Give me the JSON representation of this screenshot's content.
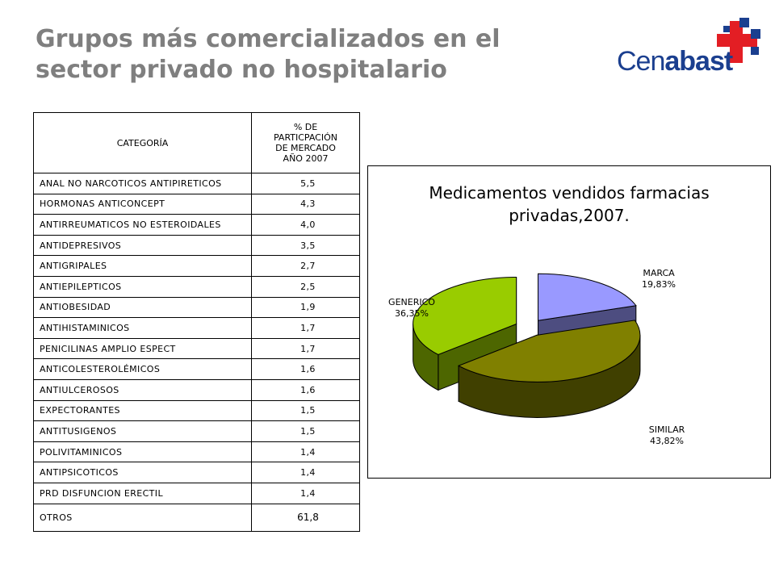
{
  "slide": {
    "title_line1": "Grupos más comercializados en el",
    "title_line2": "sector privado no hospitalario"
  },
  "logo": {
    "text_part1": "Cen",
    "text_part2": "abast",
    "colors": {
      "blue": "#1b3f8f",
      "red": "#e31e24",
      "navy": "#1b3f8f"
    }
  },
  "table": {
    "headers": [
      "CATEGORÍA",
      "% DE PARTICPACIÓN DE MERCADO AÑO 2007"
    ],
    "rows": [
      {
        "category": "ANAL NO NARCOTICOS ANTIPIRETICOS",
        "value": "5,5"
      },
      {
        "category": "HORMONAS ANTICONCEPT",
        "value": "4,3"
      },
      {
        "category": "ANTIRREUMATICOS NO ESTEROIDALES",
        "value": "4,0"
      },
      {
        "category": "ANTIDEPRESIVOS",
        "value": "3,5"
      },
      {
        "category": "ANTIGRIPALES",
        "value": "2,7"
      },
      {
        "category": "ANTIEPILEPTICOS",
        "value": "2,5"
      },
      {
        "category": "ANTIOBESIDAD",
        "value": "1,9"
      },
      {
        "category": "ANTIHISTAMINICOS",
        "value": "1,7"
      },
      {
        "category": "PENICILINAS AMPLIO ESPECT",
        "value": "1,7"
      },
      {
        "category": "ANTICOLESTEROLÉMICOS",
        "value": "1,6"
      },
      {
        "category": "ANTIULCEROSOS",
        "value": "1,6"
      },
      {
        "category": "EXPECTORANTES",
        "value": "1,5"
      },
      {
        "category": "ANTITUSIGENOS",
        "value": "1,5"
      },
      {
        "category": "POLIVITAMINICOS",
        "value": "1,4"
      },
      {
        "category": "ANTIPSICOTICOS",
        "value": "1,4"
      },
      {
        "category": "PRD DISFUNCION ERECTIL",
        "value": "1,4"
      },
      {
        "category": "OTROS",
        "value": "61,8"
      }
    ]
  },
  "chart_data": {
    "type": "pie",
    "style": "3d-exploded",
    "title_line1": "Medicamentos vendidos farmacias",
    "title_line2": "privadas,2007.",
    "slices": [
      {
        "label": "MARCA",
        "value": 19.83,
        "value_label": "19,83%",
        "color": "#9999ff",
        "side_color": "#4d4d80"
      },
      {
        "label": "SIMILAR",
        "value": 43.82,
        "value_label": "43,82%",
        "color": "#808000",
        "side_color": "#404000"
      },
      {
        "label": "GENERICO",
        "value": 36.35,
        "value_label": "36,35%",
        "color": "#99cc00",
        "side_color": "#4d6600"
      }
    ],
    "legend": "none"
  }
}
